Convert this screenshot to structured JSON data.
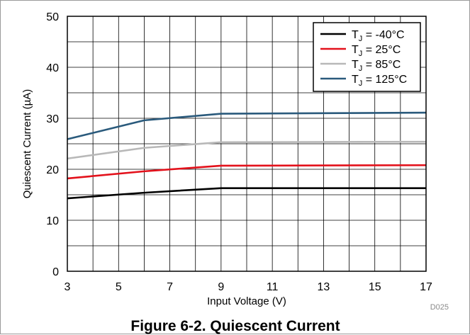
{
  "chart_data": {
    "type": "line",
    "title": "",
    "xlabel": "Input Voltage (V)",
    "ylabel": "Quiescent Current (µA)",
    "xlim": [
      3,
      17
    ],
    "ylim": [
      0,
      50
    ],
    "x_ticks": [
      "3",
      "5",
      "7",
      "9",
      "11",
      "13",
      "15",
      "17"
    ],
    "y_ticks": [
      "0",
      "10",
      "20",
      "30",
      "40",
      "50"
    ],
    "grid": true,
    "legend_position": "top-right",
    "series": [
      {
        "name": "T_J = -40°C",
        "label_main": "T",
        "label_sub": "J",
        "label_rest": " = -40°C",
        "color": "#000000",
        "x": [
          3,
          6,
          9,
          17
        ],
        "y": [
          14.3,
          15.4,
          16.3,
          16.3
        ]
      },
      {
        "name": "T_J = 25°C",
        "label_main": "T",
        "label_sub": "J",
        "label_rest": " =  25°C",
        "color": "#e3111b",
        "x": [
          3,
          6,
          9,
          17
        ],
        "y": [
          18.2,
          19.6,
          20.7,
          20.8
        ]
      },
      {
        "name": "T_J = 85°C",
        "label_main": "T",
        "label_sub": "J",
        "label_rest": " =  85°C",
        "color": "#b8b8b8",
        "x": [
          3,
          6,
          9,
          17
        ],
        "y": [
          22.1,
          24.2,
          25.3,
          25.4
        ]
      },
      {
        "name": "T_J = 125°C",
        "label_main": "T",
        "label_sub": "J",
        "label_rest": " =  125°C",
        "color": "#2a5a7c",
        "x": [
          3,
          6,
          9,
          17
        ],
        "y": [
          25.9,
          29.6,
          30.9,
          31.1
        ]
      }
    ]
  },
  "figure_code": "D025",
  "caption": "Figure 6-2. Quiescent Current"
}
